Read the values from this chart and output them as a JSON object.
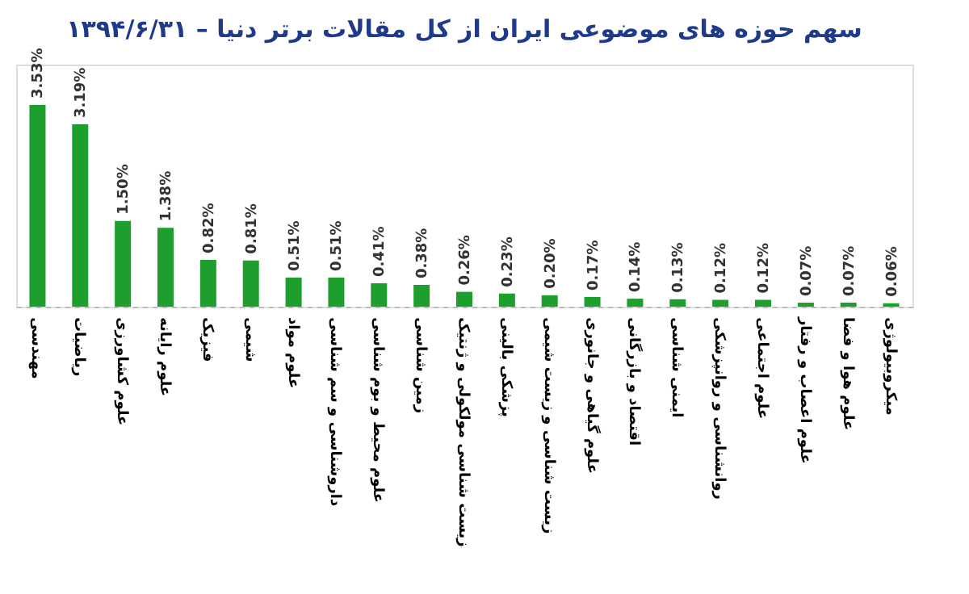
{
  "chart_data": {
    "type": "bar",
    "title": "سهم حوزه های موضوعی ایران از کل مقالات برتر دنیا – ۱۳۹۴/۶/۳۱",
    "categories": [
      "مهندسی",
      "ریاضیات",
      "علوم کشاورزی",
      "علوم رایانه",
      "فیزیک",
      "شیمی",
      "علوم مواد",
      "داروشناسی و سم شناسی",
      "علوم محیط و بوم شناسی",
      "زمین شناسی",
      "زیست شناسی مولکولی و ژنتیک",
      "پزشکی بالینی",
      "زیست شناسی و زیست شیمی",
      "علوم گیاهی و جانوری",
      "اقتصاد و بازرگانی",
      "ایمنی شناسی",
      "روانشناسی و روانپزشکی",
      "علوم اجتماعی",
      "علوم اعصاب و رفتار",
      "علوم هوا و فضا",
      "میکروبیولوژی"
    ],
    "values": [
      3.53,
      3.19,
      1.5,
      1.38,
      0.82,
      0.81,
      0.51,
      0.51,
      0.41,
      0.38,
      0.26,
      0.23,
      0.2,
      0.17,
      0.14,
      0.13,
      0.12,
      0.12,
      0.07,
      0.07,
      0.06
    ],
    "value_labels": [
      "3.53%",
      "3.19%",
      "1.50%",
      "1.38%",
      "0.82%",
      "0.81%",
      "0.51%",
      "0.51%",
      "0.41%",
      "0.38%",
      "0.26%",
      "0.23%",
      "0.20%",
      "0.17%",
      "0.14%",
      "0.13%",
      "0.12%",
      "0.12%",
      "0.07%",
      "0.07%",
      "0.06%"
    ],
    "color": "#1e9e2c"
  }
}
